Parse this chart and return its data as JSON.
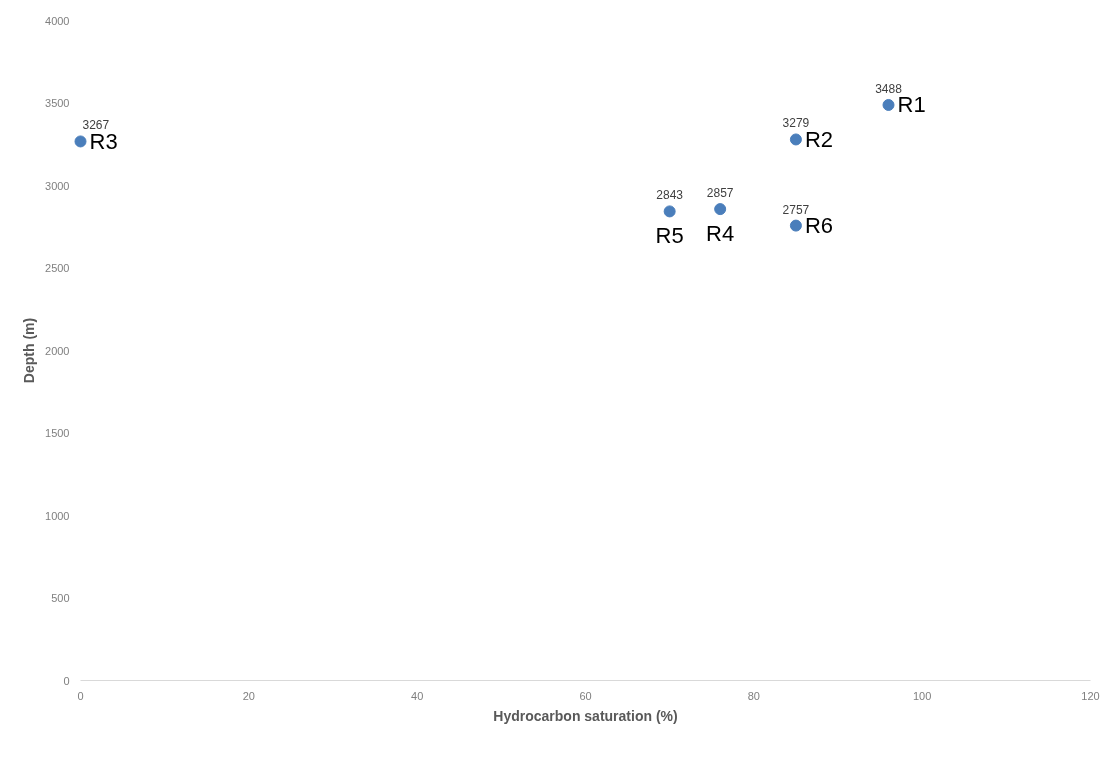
{
  "chart_data": {
    "type": "scatter",
    "xlabel": "Hydrocarbon saturation (%)",
    "ylabel": "Depth (m)",
    "x": [
      96,
      85,
      0,
      76,
      70,
      85
    ],
    "values": [
      3488,
      3279,
      3267,
      2857,
      2843,
      2757
    ],
    "color": "#4a7ebb",
    "marker": "circle",
    "data_labels": true,
    "grid": false,
    "xlim": [
      0,
      120
    ],
    "xticks": [
      0,
      20,
      40,
      60,
      80,
      100,
      120
    ],
    "ylim": [
      0,
      4000
    ],
    "yticks": [
      0,
      500,
      1000,
      1500,
      2000,
      2500,
      3000,
      3500,
      4000
    ],
    "annotations": [
      {
        "text": "R1",
        "x": 96,
        "y": 3488
      },
      {
        "text": "R2",
        "x": 85,
        "y": 3279
      },
      {
        "text": "R3",
        "x": 0,
        "y": 3267
      },
      {
        "text": "R4",
        "x": 76,
        "y": 2857
      },
      {
        "text": "R5",
        "x": 70,
        "y": 2843
      },
      {
        "text": "R6",
        "x": 85,
        "y": 2757
      }
    ]
  }
}
